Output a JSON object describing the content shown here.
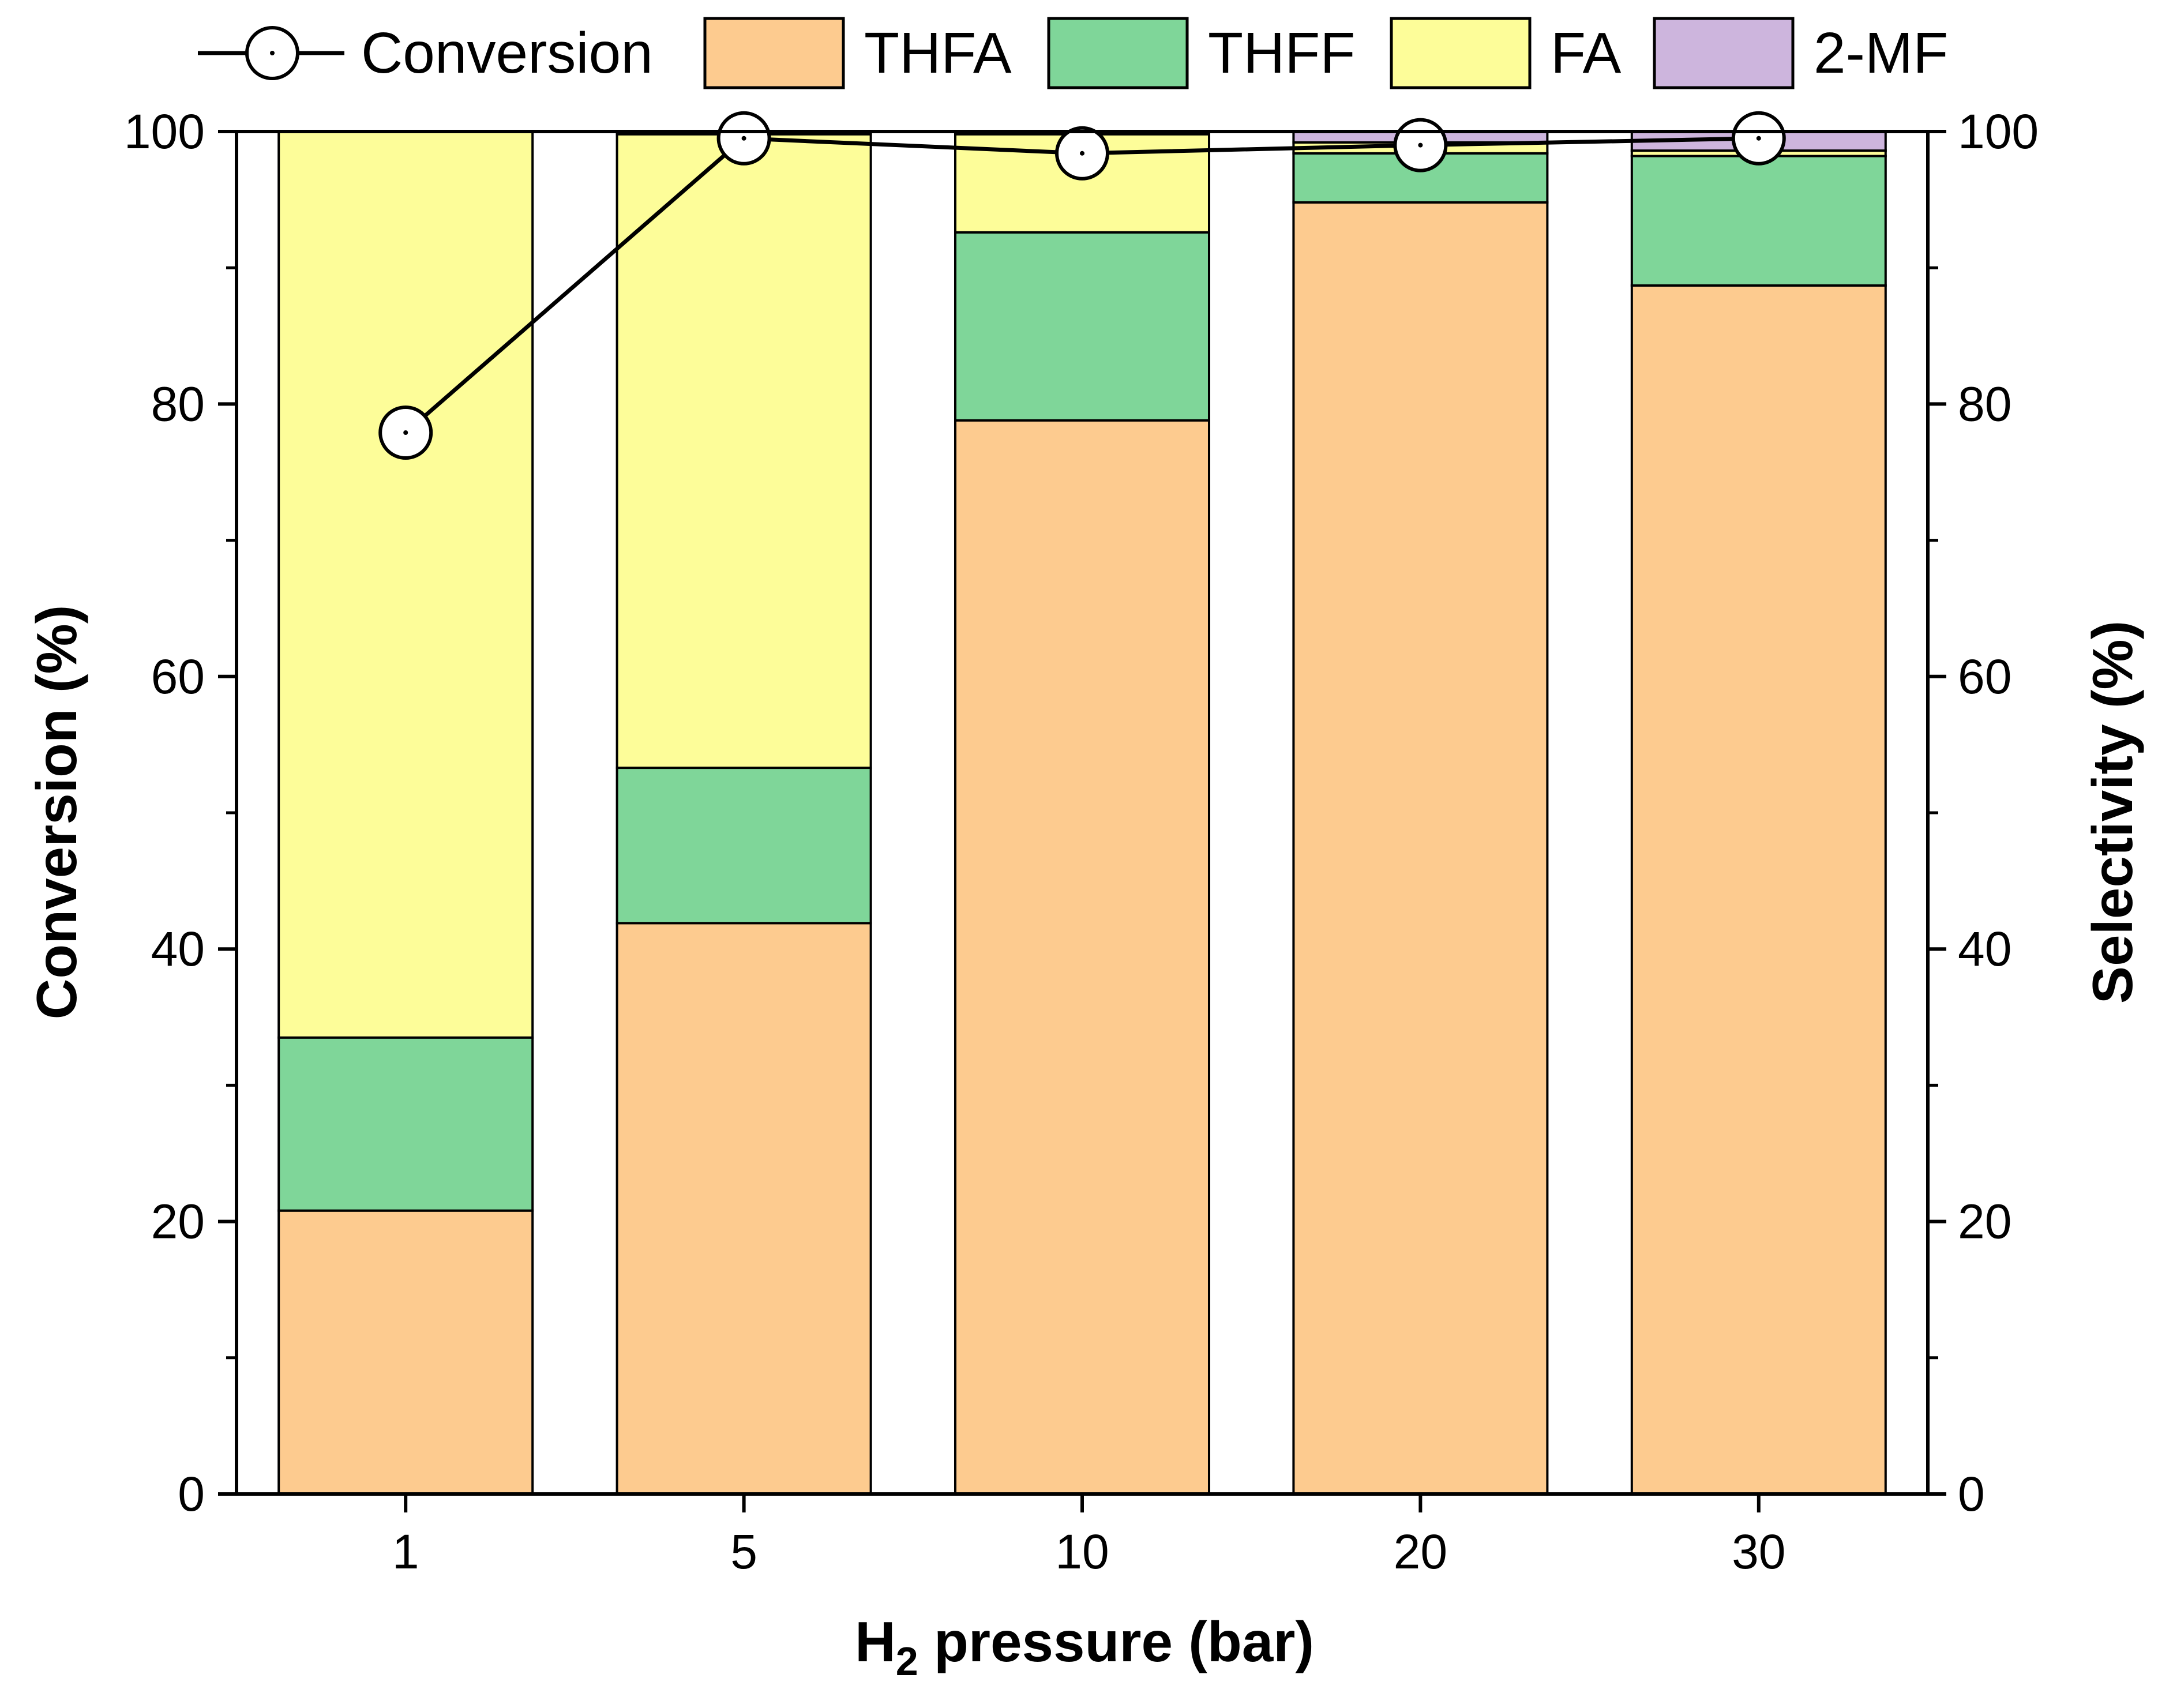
{
  "chart_data": {
    "type": "bar",
    "subtype": "stacked bar with line overlay",
    "categories": [
      "1",
      "5",
      "10",
      "20",
      "30"
    ],
    "series": [
      {
        "name": "THFA",
        "kind": "bar",
        "axis": "right",
        "color": "#FDCB8F",
        "values": [
          20.8,
          41.9,
          78.8,
          94.8,
          88.7
        ]
      },
      {
        "name": "THFF",
        "kind": "bar",
        "axis": "right",
        "color": "#7FD699",
        "values": [
          12.7,
          11.4,
          13.8,
          3.6,
          9.5
        ]
      },
      {
        "name": "FA",
        "kind": "bar",
        "axis": "right",
        "color": "#FDFD99",
        "values": [
          66.5,
          46.5,
          7.2,
          0.8,
          0.4
        ]
      },
      {
        "name": "2-MF",
        "kind": "bar",
        "axis": "right",
        "color": "#CDB5DD",
        "values": [
          0.0,
          0.2,
          0.2,
          0.8,
          1.4
        ]
      },
      {
        "name": "Conversion",
        "kind": "line",
        "axis": "left",
        "color": "#000000",
        "values": [
          77.9,
          99.5,
          98.4,
          99.0,
          99.5
        ]
      }
    ],
    "title": "",
    "xlabel": "pressure (bar)",
    "xlabel_prefix": "H",
    "xlabel_sub": "2",
    "ylabel": "Conversion (%)",
    "y2label": "Selectivity (%)",
    "ylim": [
      0,
      100
    ],
    "y2lim": [
      0,
      100
    ],
    "yticks": [
      0,
      20,
      40,
      60,
      80,
      100
    ],
    "grid": false,
    "legend_position": "top"
  }
}
